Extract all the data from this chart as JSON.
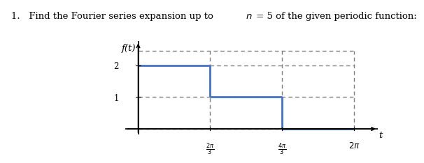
{
  "ylabel": "f(t)",
  "xlabel": "t",
  "xtick_labels": [
    "$\\frac{2\\pi}{3}$",
    "$\\frac{4\\pi}{3}$",
    "$2\\pi$"
  ],
  "ytick_labels": [
    "1",
    "2"
  ],
  "xlim": [
    -0.12,
    2.22
  ],
  "ylim": [
    -0.18,
    2.75
  ],
  "step_color": "#4472C4",
  "dashed_color": "#808080",
  "line_width": 2.0,
  "dashed_lw": 1.0,
  "pi": 3.14159265358979,
  "axes_lw": 1.2
}
